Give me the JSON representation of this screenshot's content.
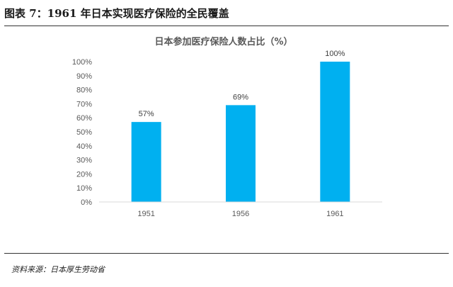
{
  "figure": {
    "header": "图表 7：1961 年日本实现医疗保险的全民覆盖",
    "source": "资料来源：日本厚生劳动省"
  },
  "colors": {
    "bar": "#00B0F0",
    "axis": "#D9D9D9",
    "rule": "#333333"
  },
  "chart_data": {
    "type": "bar",
    "title": "日本参加医疗保险人数占比（%）",
    "categories": [
      "1951",
      "1956",
      "1961"
    ],
    "values": [
      57,
      69,
      100
    ],
    "value_labels": [
      "57%",
      "69%",
      "100%"
    ],
    "ylim": [
      0,
      100
    ],
    "yticks": [
      0,
      10,
      20,
      30,
      40,
      50,
      60,
      70,
      80,
      90,
      100
    ],
    "ytick_labels": [
      "0%",
      "10%",
      "20%",
      "30%",
      "40%",
      "50%",
      "60%",
      "70%",
      "80%",
      "90%",
      "100%"
    ],
    "grid": false,
    "legend": "none",
    "xlabel": "",
    "ylabel": ""
  }
}
